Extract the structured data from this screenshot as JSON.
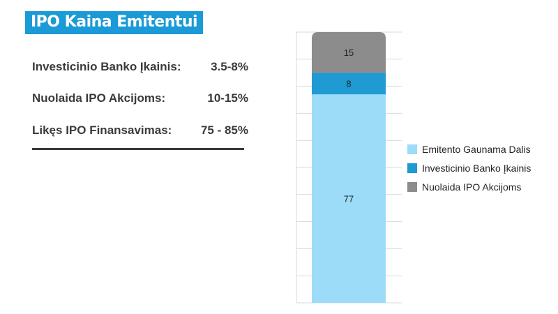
{
  "header": {
    "title": "IPO Kaina Emitentui"
  },
  "info": {
    "rows": [
      {
        "label": "Investicinio Banko Įkainis:",
        "value": "3.5-8%"
      },
      {
        "label": "Nuolaida IPO Akcijoms:",
        "value": "10-15%"
      },
      {
        "label": "Likęs IPO Finansavimas:",
        "value": "75 - 85%"
      }
    ]
  },
  "colors": {
    "title_bg": "#1a9ad6",
    "emitento": "#9cdcf8",
    "bankas": "#1f9ad3",
    "nuolaida": "#8c8c8c",
    "grid": "#d9d9d9"
  },
  "chart_data": {
    "type": "bar",
    "stacked": true,
    "categories": [
      ""
    ],
    "series": [
      {
        "name": "Emitento Gaunama Dalis",
        "values": [
          77
        ],
        "color": "#9cdcf8"
      },
      {
        "name": "Investicinio Banko Įkainis",
        "values": [
          8
        ],
        "color": "#1f9ad3"
      },
      {
        "name": "Nuolaida IPO Akcijoms",
        "values": [
          15
        ],
        "color": "#8c8c8c"
      }
    ],
    "data_labels": [
      "77",
      "8",
      "15"
    ],
    "ylim": [
      0,
      100
    ],
    "grid": true,
    "legend": "right",
    "title": "",
    "xlabel": "",
    "ylabel": ""
  }
}
